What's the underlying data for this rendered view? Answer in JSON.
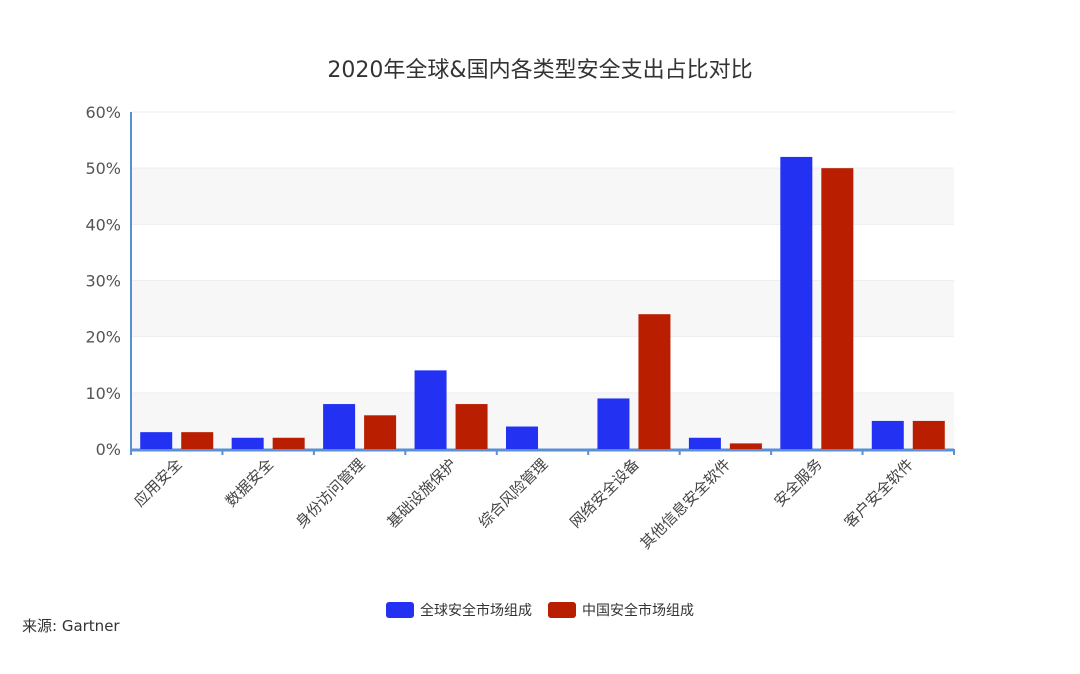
{
  "chart_data": {
    "type": "bar",
    "title": "2020年全球&国内各类型安全支出占比对比",
    "categories": [
      "应用安全",
      "数据安全",
      "身份访问管理",
      "基础设施保护",
      "综合风险管理",
      "网络安全设备",
      "其他信息安全软件",
      "安全服务",
      "客户安全软件"
    ],
    "series": [
      {
        "name": "全球安全市场组成",
        "color": "#2331f2",
        "values": [
          3,
          2,
          8,
          14,
          4,
          9,
          2,
          52,
          5
        ]
      },
      {
        "name": "中国安全市场组成",
        "color": "#b91e00",
        "values": [
          3,
          2,
          6,
          8,
          0,
          24,
          1,
          50,
          5
        ]
      }
    ],
    "ylim": [
      0,
      60
    ],
    "yticks": [
      "0%",
      "10%",
      "20%",
      "30%",
      "40%",
      "50%",
      "60%"
    ],
    "grid": true,
    "legend": "bottom",
    "source": "来源: Gartner"
  }
}
